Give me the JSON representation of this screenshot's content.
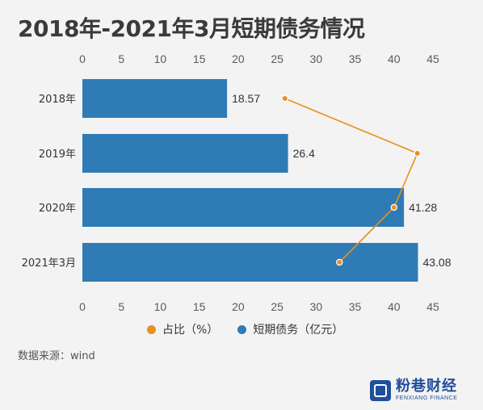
{
  "title": "2018年-2021年3月短期债务情况",
  "source": "数据来源：wind",
  "logo": {
    "cn": "粉巷财经",
    "en": "FENXIANG FINANCE"
  },
  "colors": {
    "bar": "#2e7bb5",
    "line": "#e8901e",
    "axis": "#bdbdbd"
  },
  "legend": {
    "items": [
      {
        "label": "占比（%）",
        "color": "#e8901e"
      },
      {
        "label": "短期债务（亿元）",
        "color": "#2e7bb5"
      }
    ]
  },
  "chart_data": {
    "type": "bar",
    "orientation": "horizontal",
    "categories": [
      "2018年",
      "2019年",
      "2020年",
      "2021年3月"
    ],
    "xlim": [
      0,
      45
    ],
    "xticks": [
      0,
      5,
      10,
      15,
      20,
      25,
      30,
      35,
      40,
      45
    ],
    "series": [
      {
        "name": "短期债务（亿元）",
        "type": "bar",
        "values": [
          18.57,
          26.4,
          41.28,
          43.08
        ],
        "value_labels": [
          "18.57",
          "26.4",
          "41.28",
          "43.08"
        ]
      },
      {
        "name": "占比（%）",
        "type": "line",
        "values": [
          26,
          43,
          40,
          33
        ]
      }
    ],
    "grid": false,
    "legend_position": "bottom"
  }
}
